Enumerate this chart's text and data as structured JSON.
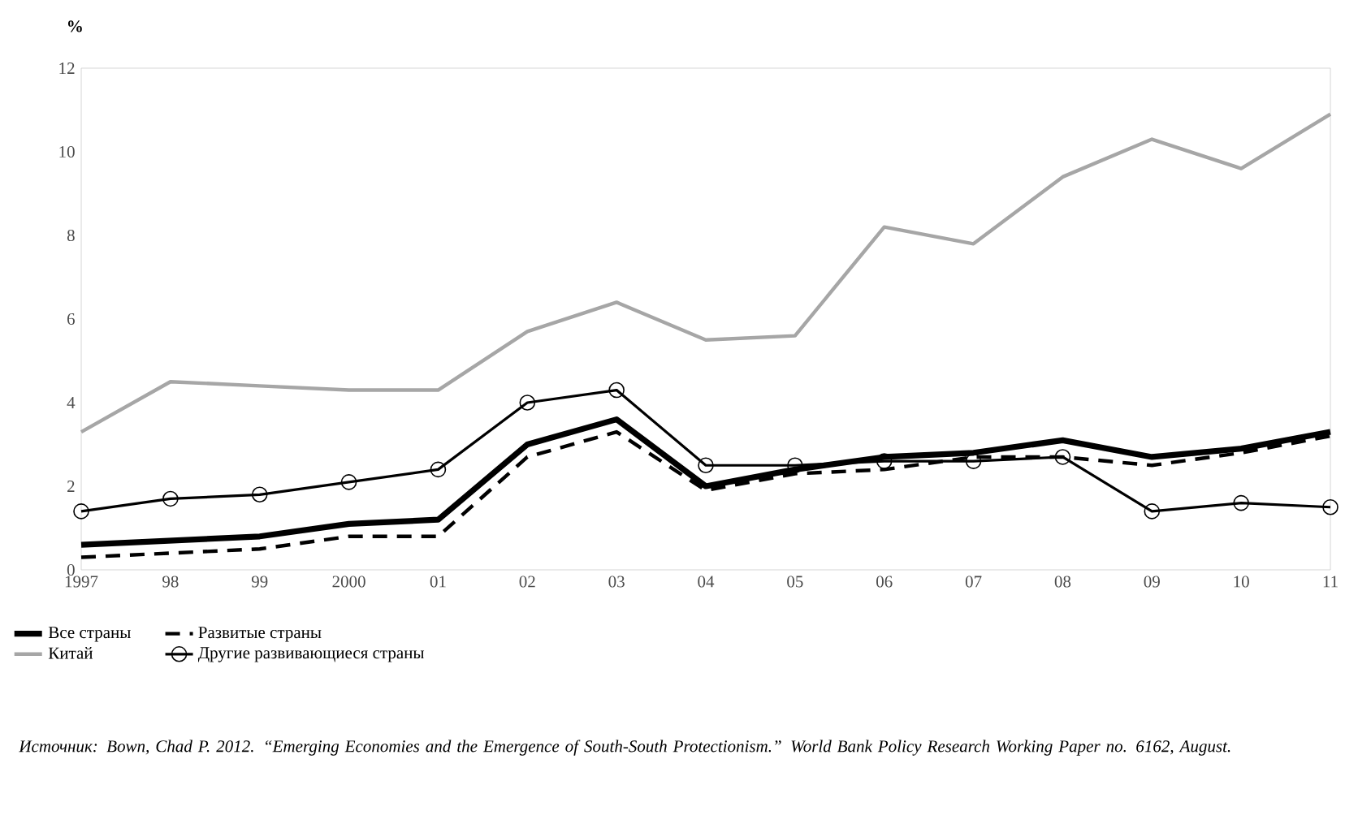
{
  "chart_data": {
    "type": "line",
    "ylabel": "%",
    "categories": [
      "1997",
      "98",
      "99",
      "2000",
      "01",
      "02",
      "03",
      "04",
      "05",
      "06",
      "07",
      "08",
      "09",
      "10",
      "11"
    ],
    "ylim": [
      0,
      12
    ],
    "yticks": [
      0,
      2,
      4,
      6,
      8,
      10,
      12
    ],
    "grid": false,
    "legend": "bottom",
    "series": [
      {
        "name": "Все страны",
        "color": "#000000",
        "marker": "none",
        "line_style": "solid",
        "values": [
          0.6,
          0.7,
          0.8,
          1.1,
          1.2,
          3.0,
          3.6,
          2.0,
          2.4,
          2.7,
          2.8,
          3.1,
          2.7,
          2.9,
          3.3
        ]
      },
      {
        "name": "Другие развивающиеся страны",
        "color": "#000000",
        "marker": "circle",
        "line_style": "solid",
        "values": [
          1.4,
          1.7,
          1.8,
          2.1,
          2.4,
          4.0,
          4.3,
          2.5,
          2.5,
          2.6,
          2.6,
          2.7,
          1.4,
          1.6,
          1.5
        ]
      },
      {
        "name": "Развитые страны",
        "color": "#000000",
        "marker": "none",
        "line_style": "dashed",
        "values": [
          0.3,
          0.4,
          0.5,
          0.8,
          0.8,
          2.7,
          3.3,
          1.9,
          2.3,
          2.4,
          2.7,
          2.7,
          2.5,
          2.8,
          3.2
        ]
      },
      {
        "name": "Китай",
        "color": "#a6a6a6",
        "marker": "none",
        "line_style": "solid",
        "values": [
          3.3,
          4.5,
          4.4,
          4.3,
          4.3,
          5.7,
          6.4,
          5.5,
          5.6,
          8.2,
          7.8,
          9.4,
          10.3,
          9.6,
          10.9
        ]
      }
    ],
    "annotations": [
      "Источник: Bown, Chad P. 2012. “Emerging Economies and the Emergence of South-South Protectionism.” World Bank Policy Research Working Paper no. 6162, August."
    ]
  }
}
